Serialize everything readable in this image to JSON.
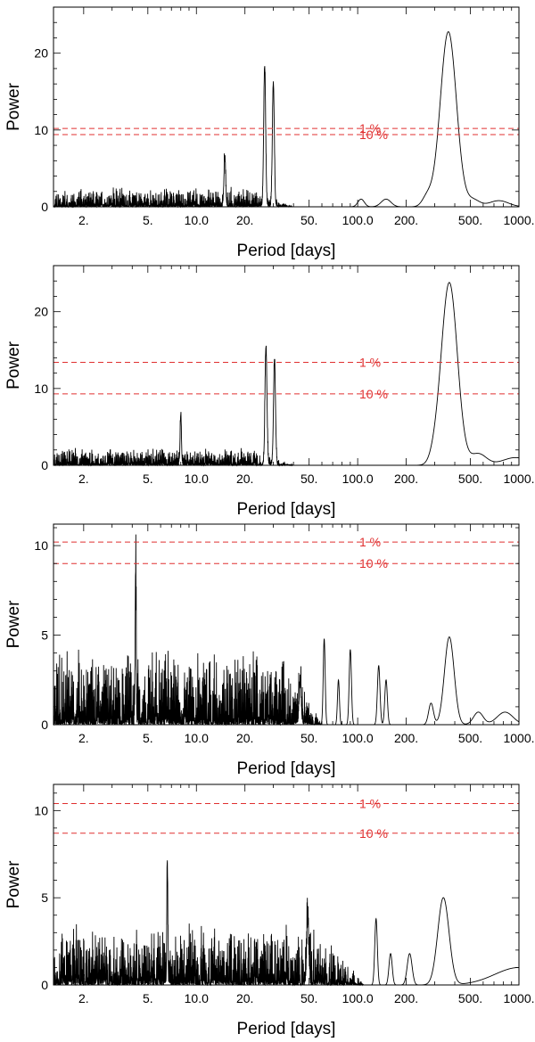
{
  "colors": {
    "curve": "#000000",
    "significance": "#e03030"
  },
  "chart_data": [
    {
      "type": "line",
      "panel": 1,
      "xscale": "log",
      "xlim": [
        1.3,
        1000
      ],
      "ylim": [
        0,
        26
      ],
      "xlabel": "Period [days]",
      "ylabel": "Power",
      "xticks": [
        2,
        5,
        10,
        20,
        50,
        100,
        200,
        500,
        1000
      ],
      "xtick_labels": [
        "2.",
        "5.",
        "10.0",
        "20.",
        "50.",
        "100.0",
        "200.",
        "500.",
        "1000."
      ],
      "yticks": [
        0,
        10,
        20
      ],
      "ytick_labels": [
        "0",
        "10",
        "20"
      ],
      "significance_levels": [
        {
          "label": "1 %",
          "power": 10.2
        },
        {
          "label": "10 %",
          "power": 9.4
        }
      ],
      "noise": {
        "low_period": 1.3,
        "high_period": 40,
        "amplitude": 2.6,
        "seed": 11
      },
      "peaks": [
        {
          "period": 26.5,
          "power": 18.2,
          "width": 0.006
        },
        {
          "period": 30.0,
          "power": 16.0,
          "width": 0.006
        },
        {
          "period": 15.0,
          "power": 6.5,
          "width": 0.005
        },
        {
          "period": 105,
          "power": 1.0,
          "width": 0.02
        },
        {
          "period": 150,
          "power": 1.0,
          "width": 0.03
        },
        {
          "period": 270,
          "power": 1.3,
          "width": 0.03
        },
        {
          "period": 365,
          "power": 22.8,
          "width": 0.05
        },
        {
          "period": 520,
          "power": 0.9,
          "width": 0.04
        },
        {
          "period": 750,
          "power": 0.8,
          "width": 0.06
        }
      ]
    },
    {
      "type": "line",
      "panel": 2,
      "xscale": "log",
      "xlim": [
        1.3,
        1000
      ],
      "ylim": [
        0,
        26
      ],
      "xlabel": "Period [days]",
      "ylabel": "Power",
      "xticks": [
        2,
        5,
        10,
        20,
        50,
        100,
        200,
        500,
        1000
      ],
      "xtick_labels": [
        "2.",
        "5.",
        "10.0",
        "20.",
        "50.",
        "100.0",
        "200.",
        "500.",
        "1000."
      ],
      "yticks": [
        0,
        10,
        20
      ],
      "ytick_labels": [
        "0",
        "10",
        "20"
      ],
      "significance_levels": [
        {
          "label": "1 %",
          "power": 13.4
        },
        {
          "label": "10 %",
          "power": 9.3
        }
      ],
      "noise": {
        "low_period": 1.3,
        "high_period": 40,
        "amplitude": 2.4,
        "seed": 23
      },
      "peaks": [
        {
          "period": 27.0,
          "power": 15.4,
          "width": 0.006
        },
        {
          "period": 30.5,
          "power": 13.8,
          "width": 0.006
        },
        {
          "period": 8.0,
          "power": 6.6,
          "width": 0.004
        },
        {
          "period": 300,
          "power": 0.8,
          "width": 0.03
        },
        {
          "period": 370,
          "power": 23.8,
          "width": 0.05
        },
        {
          "period": 560,
          "power": 1.5,
          "width": 0.05
        },
        {
          "period": 950,
          "power": 1.0,
          "width": 0.08
        }
      ]
    },
    {
      "type": "line",
      "panel": 3,
      "xscale": "log",
      "xlim": [
        1.3,
        1000
      ],
      "ylim": [
        0,
        11.2
      ],
      "xlabel": "Period [days]",
      "ylabel": "Power",
      "xticks": [
        2,
        5,
        10,
        20,
        50,
        100,
        200,
        500,
        1000
      ],
      "xtick_labels": [
        "2.",
        "5.",
        "10.0",
        "20.",
        "50.",
        "100.0",
        "200.",
        "500.",
        "1000."
      ],
      "yticks": [
        0,
        5,
        10
      ],
      "ytick_labels": [
        "0",
        "5",
        "10"
      ],
      "significance_levels": [
        {
          "label": "1 %",
          "power": 10.2
        },
        {
          "label": "10 %",
          "power": 9.0
        }
      ],
      "noise": {
        "low_period": 1.3,
        "high_period": 60,
        "amplitude": 4.5,
        "seed": 37
      },
      "peaks": [
        {
          "period": 4.2,
          "power": 8.5,
          "width": 0.003
        },
        {
          "period": 44,
          "power": 2.3,
          "width": 0.006
        },
        {
          "period": 62,
          "power": 4.8,
          "width": 0.006
        },
        {
          "period": 76,
          "power": 2.5,
          "width": 0.006
        },
        {
          "period": 90,
          "power": 4.2,
          "width": 0.007
        },
        {
          "period": 135,
          "power": 3.3,
          "width": 0.008
        },
        {
          "period": 150,
          "power": 2.5,
          "width": 0.008
        },
        {
          "period": 285,
          "power": 1.2,
          "width": 0.015
        },
        {
          "period": 370,
          "power": 4.9,
          "width": 0.03
        },
        {
          "period": 560,
          "power": 0.7,
          "width": 0.03
        },
        {
          "period": 820,
          "power": 0.7,
          "width": 0.05
        }
      ]
    },
    {
      "type": "line",
      "panel": 4,
      "xscale": "log",
      "xlim": [
        1.3,
        1000
      ],
      "ylim": [
        0,
        11.5
      ],
      "xlabel": "Period [days]",
      "ylabel": "Power",
      "xticks": [
        2,
        5,
        10,
        20,
        50,
        100,
        200,
        500,
        1000
      ],
      "xtick_labels": [
        "2.",
        "5.",
        "10.0",
        "20.",
        "50.",
        "100.0",
        "200.",
        "500.",
        "1000."
      ],
      "yticks": [
        0,
        5,
        10
      ],
      "ytick_labels": [
        "0",
        "5",
        "10"
      ],
      "significance_levels": [
        {
          "label": "1 %",
          "power": 10.4
        },
        {
          "label": "10 %",
          "power": 8.7
        }
      ],
      "noise": {
        "low_period": 1.3,
        "high_period": 110,
        "amplitude": 3.6,
        "seed": 53
      },
      "peaks": [
        {
          "period": 6.6,
          "power": 7.0,
          "width": 0.003
        },
        {
          "period": 49,
          "power": 3.5,
          "width": 0.006
        },
        {
          "period": 130,
          "power": 3.8,
          "width": 0.008
        },
        {
          "period": 160,
          "power": 1.8,
          "width": 0.01
        },
        {
          "period": 210,
          "power": 1.8,
          "width": 0.015
        },
        {
          "period": 340,
          "power": 5.0,
          "width": 0.035
        },
        {
          "period": 1000,
          "power": 1.0,
          "width": 0.15
        }
      ]
    }
  ]
}
